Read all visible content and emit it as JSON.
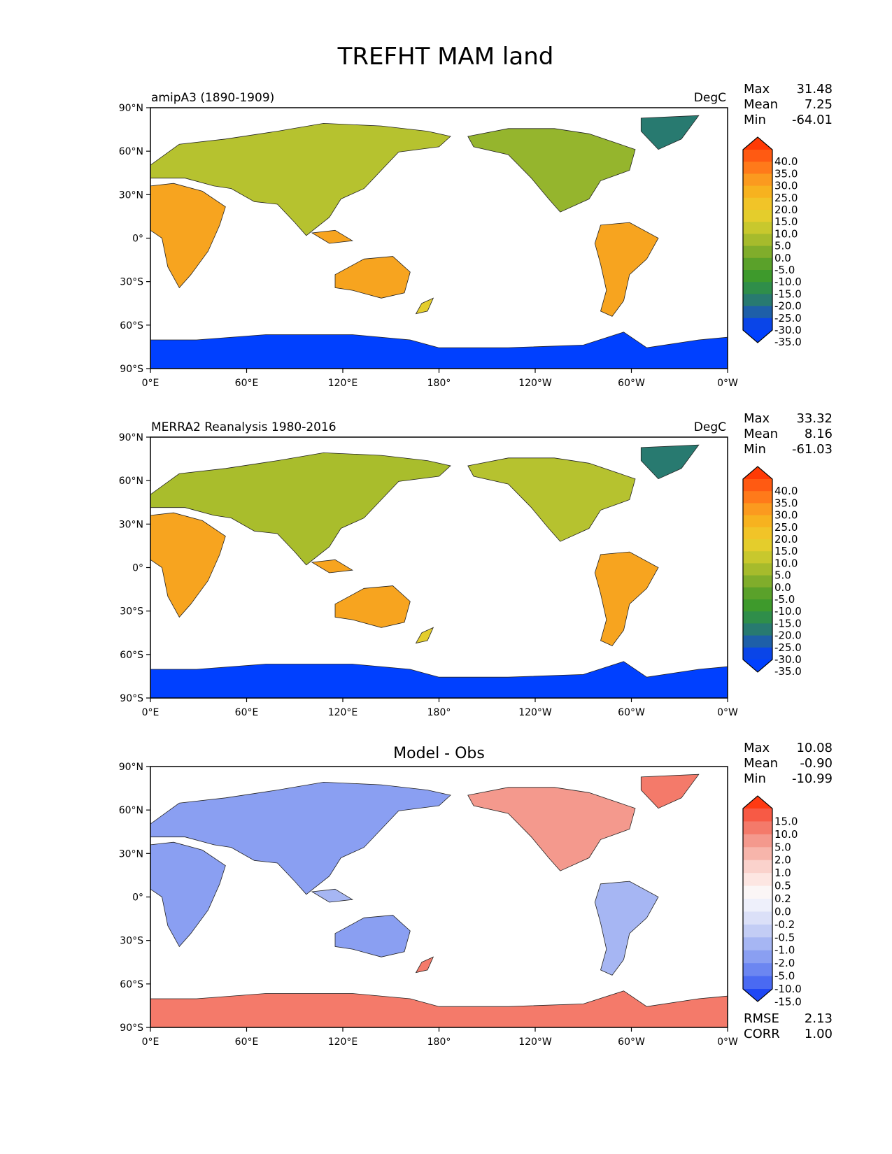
{
  "title": "TREFHT MAM land",
  "lat_ticks": [
    "90°N",
    "60°N",
    "30°N",
    "0°",
    "30°S",
    "60°S",
    "90°S"
  ],
  "lon_ticks": [
    "0°E",
    "60°E",
    "120°E",
    "180°",
    "120°W",
    "60°W",
    "0°W"
  ],
  "panels": [
    {
      "id": "model",
      "left_title": "amipA3 (1890-1909)",
      "center_title": "",
      "units": "DegC",
      "stats": [
        {
          "label": "Max",
          "value": "31.48"
        },
        {
          "label": "Mean",
          "value": "7.25"
        },
        {
          "label": "Min",
          "value": "-64.01"
        }
      ],
      "extra_stats": [],
      "colorbar": {
        "ticks": [
          "40.0",
          "35.0",
          "30.0",
          "25.0",
          "20.0",
          "15.0",
          "10.0",
          "5.0",
          "0.0",
          "-5.0",
          "-10.0",
          "-15.0",
          "-20.0",
          "-25.0",
          "-30.0",
          "-35.0"
        ],
        "colors": [
          "#ff3a05",
          "#ff5a12",
          "#ff7a1a",
          "#fb9a1f",
          "#f7b21f",
          "#f1c428",
          "#e4cd2c",
          "#c8c82d",
          "#a6bb2c",
          "#80ad2b",
          "#5aa12a",
          "#3e9a2c",
          "#2f8e4a",
          "#287a70",
          "#1e5fa8",
          "#0a45e8",
          "#0040ff"
        ]
      }
    },
    {
      "id": "obs",
      "left_title": "MERRA2 Reanalysis 1980-2016",
      "center_title": "",
      "units": "DegC",
      "stats": [
        {
          "label": "Max",
          "value": "33.32"
        },
        {
          "label": "Mean",
          "value": "8.16"
        },
        {
          "label": "Min",
          "value": "-61.03"
        }
      ],
      "extra_stats": [],
      "colorbar": {
        "ticks": [
          "40.0",
          "35.0",
          "30.0",
          "25.0",
          "20.0",
          "15.0",
          "10.0",
          "5.0",
          "0.0",
          "-5.0",
          "-10.0",
          "-15.0",
          "-20.0",
          "-25.0",
          "-30.0",
          "-35.0"
        ],
        "colors": [
          "#ff3a05",
          "#ff5a12",
          "#ff7a1a",
          "#fb9a1f",
          "#f7b21f",
          "#f1c428",
          "#e4cd2c",
          "#c8c82d",
          "#a6bb2c",
          "#80ad2b",
          "#5aa12a",
          "#3e9a2c",
          "#2f8e4a",
          "#287a70",
          "#1e5fa8",
          "#0a45e8",
          "#0040ff"
        ]
      }
    },
    {
      "id": "diff",
      "left_title": "",
      "center_title": "Model - Obs",
      "units": "",
      "stats": [
        {
          "label": "Max",
          "value": "10.08"
        },
        {
          "label": "Mean",
          "value": "-0.90"
        },
        {
          "label": "Min",
          "value": "-10.99"
        }
      ],
      "extra_stats": [
        {
          "label": "RMSE",
          "value": "2.13"
        },
        {
          "label": "CORR",
          "value": "1.00"
        }
      ],
      "colorbar": {
        "ticks": [
          "15.0",
          "10.0",
          "5.0",
          "2.0",
          "1.0",
          "0.5",
          "0.2",
          "0.0",
          "-0.2",
          "-0.5",
          "-1.0",
          "-2.0",
          "-5.0",
          "-10.0",
          "-15.0"
        ],
        "colors": [
          "#ff3a12",
          "#f75a45",
          "#f47a6a",
          "#f4998d",
          "#f7b5ab",
          "#fad2cc",
          "#fde6e2",
          "#fbf6f6",
          "#eef0fb",
          "#dbe0f8",
          "#c3cdf5",
          "#a6b6f3",
          "#8a9ff2",
          "#6c86f1",
          "#4a6af2",
          "#1f47f5"
        ]
      }
    }
  ]
}
